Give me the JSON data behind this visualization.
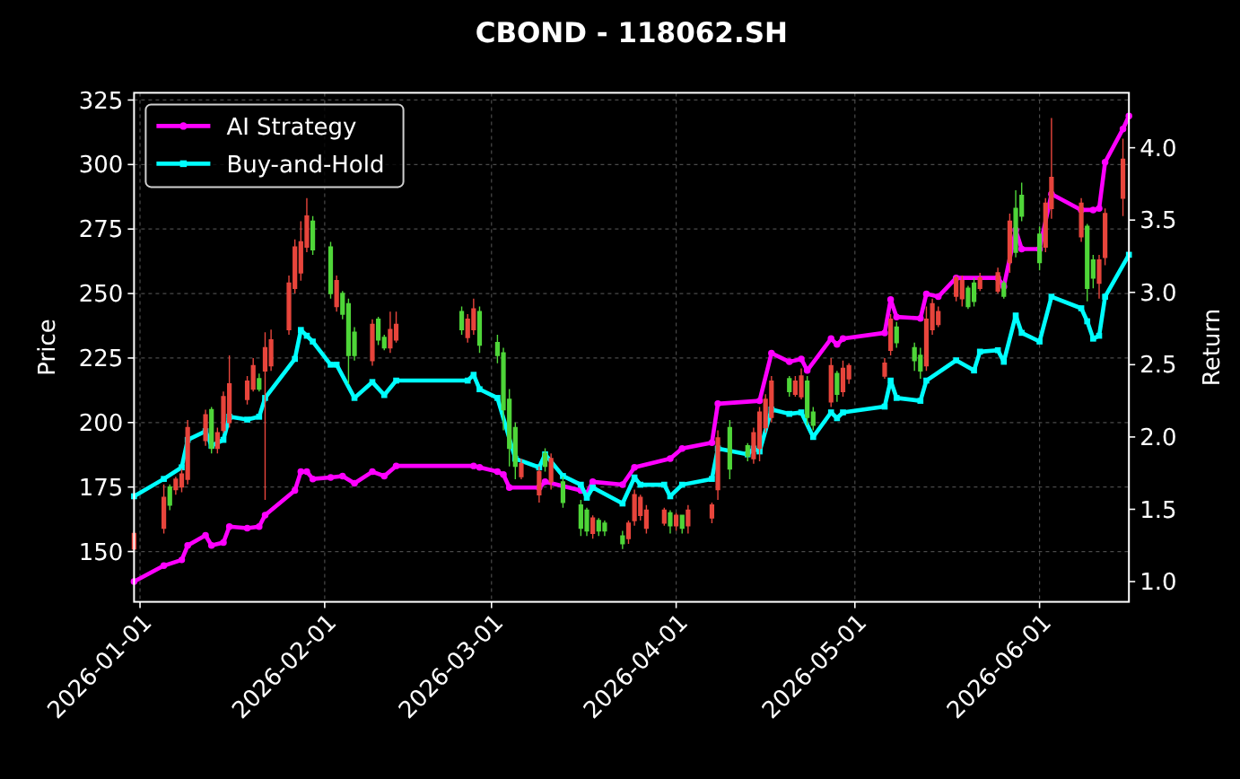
{
  "chart_data": {
    "type": "candlestick",
    "title": "CBOND - 118062.SH",
    "ylabel": "Price",
    "y2label": "Return",
    "x": [
      "2025-12-31",
      "2026-01-05",
      "2026-01-06",
      "2026-01-07",
      "2026-01-08",
      "2026-01-09",
      "2026-01-12",
      "2026-01-13",
      "2026-01-14",
      "2026-01-15",
      "2026-01-16",
      "2026-01-19",
      "2026-01-20",
      "2026-01-21",
      "2026-01-22",
      "2026-01-23",
      "2026-01-26",
      "2026-01-27",
      "2026-01-28",
      "2026-01-29",
      "2026-01-30",
      "2026-02-02",
      "2026-02-03",
      "2026-02-04",
      "2026-02-05",
      "2026-02-06",
      "2026-02-09",
      "2026-02-10",
      "2026-02-11",
      "2026-02-12",
      "2026-02-13",
      "2026-02-24",
      "2026-02-25",
      "2026-02-26",
      "2026-02-27",
      "2026-03-02",
      "2026-03-03",
      "2026-03-04",
      "2026-03-05",
      "2026-03-06",
      "2026-03-09",
      "2026-03-10",
      "2026-03-11",
      "2026-03-13",
      "2026-03-16",
      "2026-03-17",
      "2026-03-18",
      "2026-03-19",
      "2026-03-20",
      "2026-03-23",
      "2026-03-24",
      "2026-03-25",
      "2026-03-26",
      "2026-03-27",
      "2026-03-30",
      "2026-03-31",
      "2026-04-01",
      "2026-04-02",
      "2026-04-03",
      "2026-04-07",
      "2026-04-08",
      "2026-04-10",
      "2026-04-13",
      "2026-04-14",
      "2026-04-15",
      "2026-04-16",
      "2026-04-17",
      "2026-04-20",
      "2026-04-21",
      "2026-04-22",
      "2026-04-23",
      "2026-04-24",
      "2026-04-27",
      "2026-04-28",
      "2026-04-29",
      "2026-04-30",
      "2026-05-06",
      "2026-05-07",
      "2026-05-08",
      "2026-05-11",
      "2026-05-12",
      "2026-05-13",
      "2026-05-14",
      "2026-05-15",
      "2026-05-18",
      "2026-05-19",
      "2026-05-20",
      "2026-05-21",
      "2026-05-22",
      "2026-05-25",
      "2026-05-26",
      "2026-05-27",
      "2026-05-28",
      "2026-05-29",
      "2026-06-01",
      "2026-06-02",
      "2026-06-03",
      "2026-06-08",
      "2026-06-09",
      "2026-06-10",
      "2026-06-11",
      "2026-06-12",
      "2026-06-15"
    ],
    "ohlc": [
      [
        151,
        158,
        150,
        157
      ],
      [
        159,
        176,
        157,
        171
      ],
      [
        175,
        176,
        166,
        168
      ],
      [
        174,
        179,
        172,
        178
      ],
      [
        175,
        182,
        173,
        180
      ],
      [
        178,
        201,
        176,
        198
      ],
      [
        193,
        205,
        191,
        203
      ],
      [
        205,
        206,
        188,
        190
      ],
      [
        190,
        198,
        188,
        196
      ],
      [
        197,
        212,
        196,
        210
      ],
      [
        200,
        226,
        198,
        215
      ],
      [
        209,
        218,
        207,
        216
      ],
      [
        213,
        225,
        212,
        222
      ],
      [
        217,
        219,
        212,
        213
      ],
      [
        220,
        235,
        170,
        229
      ],
      [
        222,
        236,
        220,
        232
      ],
      [
        236,
        257,
        234,
        254
      ],
      [
        252,
        271,
        250,
        268
      ],
      [
        258,
        278,
        255,
        270
      ],
      [
        268,
        287,
        266,
        280
      ],
      [
        278,
        280,
        265,
        267
      ],
      [
        268,
        270,
        248,
        250
      ],
      [
        245,
        257,
        243,
        255
      ],
      [
        250,
        251,
        240,
        242
      ],
      [
        246,
        248,
        215,
        226
      ],
      [
        235,
        237,
        224,
        226
      ],
      [
        224,
        240,
        222,
        238
      ],
      [
        240,
        241,
        230,
        232
      ],
      [
        233,
        234,
        228,
        229
      ],
      [
        229,
        243,
        227,
        236
      ],
      [
        232,
        243,
        231,
        238
      ],
      [
        243,
        245,
        234,
        236
      ],
      [
        233,
        242,
        231,
        240
      ],
      [
        236,
        248,
        234,
        244
      ],
      [
        243,
        245,
        227,
        230
      ],
      [
        231,
        234,
        223,
        226
      ],
      [
        227,
        229,
        197,
        205
      ],
      [
        209,
        213,
        183,
        190
      ],
      [
        198,
        200,
        178,
        183
      ],
      [
        179,
        186,
        178,
        184
      ],
      [
        172,
        183,
        169,
        181
      ],
      [
        188,
        190,
        181,
        183
      ],
      [
        177,
        188,
        174,
        186
      ],
      [
        177,
        179,
        167,
        169
      ],
      [
        168,
        170,
        156,
        159
      ],
      [
        166,
        167,
        156,
        158
      ],
      [
        157,
        164,
        155,
        163
      ],
      [
        162,
        163,
        156,
        158
      ],
      [
        161,
        162,
        156,
        158
      ],
      [
        156,
        158,
        151,
        153
      ],
      [
        155,
        162,
        153,
        161
      ],
      [
        162,
        174,
        160,
        172
      ],
      [
        164,
        172,
        162,
        171
      ],
      [
        159,
        168,
        157,
        166
      ],
      [
        161,
        167,
        160,
        166
      ],
      [
        165,
        166,
        157,
        160
      ],
      [
        160,
        165,
        158,
        164
      ],
      [
        164,
        164,
        157,
        159
      ],
      [
        160,
        168,
        157,
        166
      ],
      [
        163,
        169,
        161,
        168
      ],
      [
        174,
        197,
        170,
        194
      ],
      [
        198,
        201,
        178,
        182
      ],
      [
        191,
        192,
        185,
        187
      ],
      [
        186,
        198,
        184,
        196
      ],
      [
        190,
        206,
        185,
        204
      ],
      [
        198,
        211,
        196,
        209
      ],
      [
        202,
        218,
        200,
        216
      ],
      [
        217,
        218,
        210,
        212
      ],
      [
        211,
        218,
        210,
        216
      ],
      [
        210,
        221,
        209,
        218
      ],
      [
        216,
        218,
        199,
        202
      ],
      [
        204,
        206,
        197,
        199
      ],
      [
        208,
        225,
        206,
        222
      ],
      [
        219,
        220,
        208,
        211
      ],
      [
        212,
        224,
        210,
        221
      ],
      [
        217,
        223,
        215,
        222
      ],
      [
        218,
        225,
        217,
        223
      ],
      [
        228,
        242,
        226,
        240
      ],
      [
        237,
        239,
        229,
        231
      ],
      [
        229,
        231,
        220,
        224
      ],
      [
        226,
        229,
        217,
        220
      ],
      [
        222,
        245,
        220,
        240
      ],
      [
        236,
        248,
        234,
        246
      ],
      [
        238,
        245,
        237,
        243
      ],
      [
        249,
        257,
        247,
        256
      ],
      [
        248,
        257,
        245,
        255
      ],
      [
        252,
        253,
        244,
        245
      ],
      [
        254,
        256,
        245,
        247
      ],
      [
        252,
        258,
        251,
        256
      ],
      [
        251,
        260,
        250,
        258
      ],
      [
        254,
        255,
        248,
        249
      ],
      [
        262,
        281,
        258,
        278
      ],
      [
        283,
        290,
        264,
        266
      ],
      [
        288,
        293,
        278,
        280
      ],
      [
        273,
        276,
        259,
        262
      ],
      [
        268,
        287,
        266,
        285
      ],
      [
        283,
        318,
        279,
        295
      ],
      [
        272,
        287,
        270,
        285
      ],
      [
        276,
        277,
        247,
        252
      ],
      [
        263,
        265,
        252,
        256
      ],
      [
        254,
        265,
        248,
        263
      ],
      [
        264,
        283,
        261,
        281
      ],
      [
        287,
        310,
        280,
        302
      ]
    ],
    "colors": [
      "#e8453c",
      "#e8453c",
      "#4fd639",
      "#e8453c",
      "#e8453c",
      "#e8453c",
      "#e8453c",
      "#4fd639",
      "#e8453c",
      "#e8453c",
      "#e8453c",
      "#e8453c",
      "#e8453c",
      "#4fd639",
      "#e8453c",
      "#e8453c",
      "#e8453c",
      "#e8453c",
      "#e8453c",
      "#e8453c",
      "#4fd639",
      "#4fd639",
      "#e8453c",
      "#4fd639",
      "#4fd639",
      "#4fd639",
      "#e8453c",
      "#4fd639",
      "#4fd639",
      "#e8453c",
      "#e8453c",
      "#4fd639",
      "#e8453c",
      "#e8453c",
      "#4fd639",
      "#4fd639",
      "#4fd639",
      "#4fd639",
      "#4fd639",
      "#e8453c",
      "#e8453c",
      "#4fd639",
      "#e8453c",
      "#4fd639",
      "#4fd639",
      "#4fd639",
      "#e8453c",
      "#4fd639",
      "#4fd639",
      "#4fd639",
      "#e8453c",
      "#e8453c",
      "#e8453c",
      "#e8453c",
      "#e8453c",
      "#4fd639",
      "#e8453c",
      "#4fd639",
      "#e8453c",
      "#e8453c",
      "#e8453c",
      "#4fd639",
      "#4fd639",
      "#e8453c",
      "#e8453c",
      "#e8453c",
      "#e8453c",
      "#4fd639",
      "#e8453c",
      "#e8453c",
      "#4fd639",
      "#4fd639",
      "#e8453c",
      "#4fd639",
      "#e8453c",
      "#e8453c",
      "#e8453c",
      "#e8453c",
      "#4fd639",
      "#4fd639",
      "#4fd639",
      "#e8453c",
      "#e8453c",
      "#e8453c",
      "#e8453c",
      "#e8453c",
      "#4fd639",
      "#4fd639",
      "#e8453c",
      "#e8453c",
      "#4fd639",
      "#e8453c",
      "#4fd639",
      "#4fd639",
      "#4fd639",
      "#e8453c",
      "#e8453c",
      "#e8453c",
      "#4fd639",
      "#4fd639",
      "#e8453c",
      "#e8453c",
      "#e8453c"
    ],
    "series": [
      {
        "name": "AI Strategy",
        "type": "line",
        "axis": "y2",
        "color": "#ff00ff",
        "marker": "circle",
        "x": [
          "2025-12-31",
          "2026-01-05",
          "2026-01-08",
          "2026-01-09",
          "2026-01-12",
          "2026-01-13",
          "2026-01-15",
          "2026-01-16",
          "2026-01-19",
          "2026-01-21",
          "2026-01-22",
          "2026-01-27",
          "2026-01-28",
          "2026-01-29",
          "2026-01-30",
          "2026-02-02",
          "2026-02-04",
          "2026-02-06",
          "2026-02-09",
          "2026-02-11",
          "2026-02-13",
          "2026-02-26",
          "2026-02-27",
          "2026-03-02",
          "2026-03-03",
          "2026-03-04",
          "2026-03-09",
          "2026-03-10",
          "2026-03-16",
          "2026-03-17",
          "2026-03-18",
          "2026-03-23",
          "2026-03-25",
          "2026-03-31",
          "2026-04-02",
          "2026-04-07",
          "2026-04-08",
          "2026-04-15",
          "2026-04-17",
          "2026-04-20",
          "2026-04-22",
          "2026-04-23",
          "2026-04-27",
          "2026-04-28",
          "2026-04-29",
          "2026-05-06",
          "2026-05-07",
          "2026-05-08",
          "2026-05-12",
          "2026-05-13",
          "2026-05-15",
          "2026-05-18",
          "2026-05-25",
          "2026-05-26",
          "2026-05-28",
          "2026-05-29",
          "2026-06-01",
          "2026-06-03",
          "2026-06-08",
          "2026-06-10",
          "2026-06-11",
          "2026-06-12",
          "2026-06-15",
          "2026-06-16"
        ],
        "values": [
          1.0,
          1.11,
          1.15,
          1.25,
          1.32,
          1.25,
          1.27,
          1.38,
          1.37,
          1.38,
          1.46,
          1.63,
          1.76,
          1.76,
          1.71,
          1.72,
          1.73,
          1.68,
          1.76,
          1.73,
          1.8,
          1.8,
          1.79,
          1.76,
          1.74,
          1.65,
          1.65,
          1.69,
          1.63,
          1.61,
          1.69,
          1.67,
          1.79,
          1.85,
          1.92,
          1.96,
          2.23,
          2.25,
          2.58,
          2.52,
          2.54,
          2.46,
          2.68,
          2.64,
          2.68,
          2.72,
          2.95,
          2.83,
          2.82,
          2.99,
          2.97,
          3.1,
          3.1,
          3.04,
          3.43,
          3.3,
          3.3,
          3.68,
          3.57,
          3.57,
          3.58,
          3.9,
          4.13,
          4.22
        ]
      },
      {
        "name": "Buy-and-Hold",
        "type": "line",
        "axis": "y2",
        "color": "#00ffff",
        "marker": "square",
        "x": [
          "2025-12-31",
          "2026-01-05",
          "2026-01-08",
          "2026-01-09",
          "2026-01-12",
          "2026-01-13",
          "2026-01-15",
          "2026-01-16",
          "2026-01-19",
          "2026-01-21",
          "2026-01-22",
          "2026-01-27",
          "2026-01-28",
          "2026-01-29",
          "2026-01-30",
          "2026-02-02",
          "2026-02-03",
          "2026-02-06",
          "2026-02-09",
          "2026-02-11",
          "2026-02-13",
          "2026-02-25",
          "2026-02-26",
          "2026-02-27",
          "2026-03-02",
          "2026-03-05",
          "2026-03-09",
          "2026-03-10",
          "2026-03-13",
          "2026-03-16",
          "2026-03-17",
          "2026-03-18",
          "2026-03-23",
          "2026-03-25",
          "2026-03-26",
          "2026-03-30",
          "2026-03-31",
          "2026-04-02",
          "2026-04-07",
          "2026-04-08",
          "2026-04-13",
          "2026-04-14",
          "2026-04-15",
          "2026-04-17",
          "2026-04-20",
          "2026-04-22",
          "2026-04-24",
          "2026-04-27",
          "2026-04-28",
          "2026-04-29",
          "2026-05-06",
          "2026-05-07",
          "2026-05-08",
          "2026-05-12",
          "2026-05-13",
          "2026-05-18",
          "2026-05-21",
          "2026-05-22",
          "2026-05-25",
          "2026-05-26",
          "2026-05-28",
          "2026-05-29",
          "2026-06-01",
          "2026-06-03",
          "2026-06-08",
          "2026-06-09",
          "2026-06-10",
          "2026-06-11",
          "2026-06-12",
          "2026-06-16"
        ],
        "values": [
          1.59,
          1.71,
          1.79,
          1.98,
          2.04,
          1.94,
          1.98,
          2.14,
          2.12,
          2.14,
          2.27,
          2.54,
          2.74,
          2.7,
          2.66,
          2.5,
          2.5,
          2.27,
          2.38,
          2.29,
          2.39,
          2.39,
          2.43,
          2.33,
          2.27,
          1.85,
          1.79,
          1.88,
          1.73,
          1.67,
          1.58,
          1.65,
          1.54,
          1.72,
          1.67,
          1.67,
          1.59,
          1.67,
          1.71,
          1.92,
          1.88,
          1.92,
          1.9,
          2.19,
          2.16,
          2.17,
          2.0,
          2.17,
          2.13,
          2.17,
          2.21,
          2.39,
          2.27,
          2.25,
          2.39,
          2.53,
          2.46,
          2.59,
          2.6,
          2.52,
          2.84,
          2.72,
          2.66,
          2.97,
          2.89,
          2.8,
          2.68,
          2.7,
          2.97,
          3.26
        ]
      }
    ],
    "xlim": [
      "2025-12-31",
      "2026-06-16"
    ],
    "xticks": [
      "2026-01-01",
      "2026-02-01",
      "2026-03-01",
      "2026-04-01",
      "2026-05-01",
      "2026-06-01"
    ],
    "ylim": [
      130.5,
      327.8
    ],
    "yticks": [
      150,
      175,
      200,
      225,
      250,
      275,
      300,
      325
    ],
    "y2lim": [
      0.86,
      4.38
    ],
    "y2ticks": [
      {
        "value": 1,
        "label": "1.0"
      },
      1.5,
      {
        "value": 2,
        "label": "2.0"
      },
      2.5,
      {
        "value": 3,
        "label": "3.0"
      },
      3.5,
      {
        "value": 4,
        "label": "4.0"
      }
    ],
    "grid": true,
    "legend": "top left"
  }
}
